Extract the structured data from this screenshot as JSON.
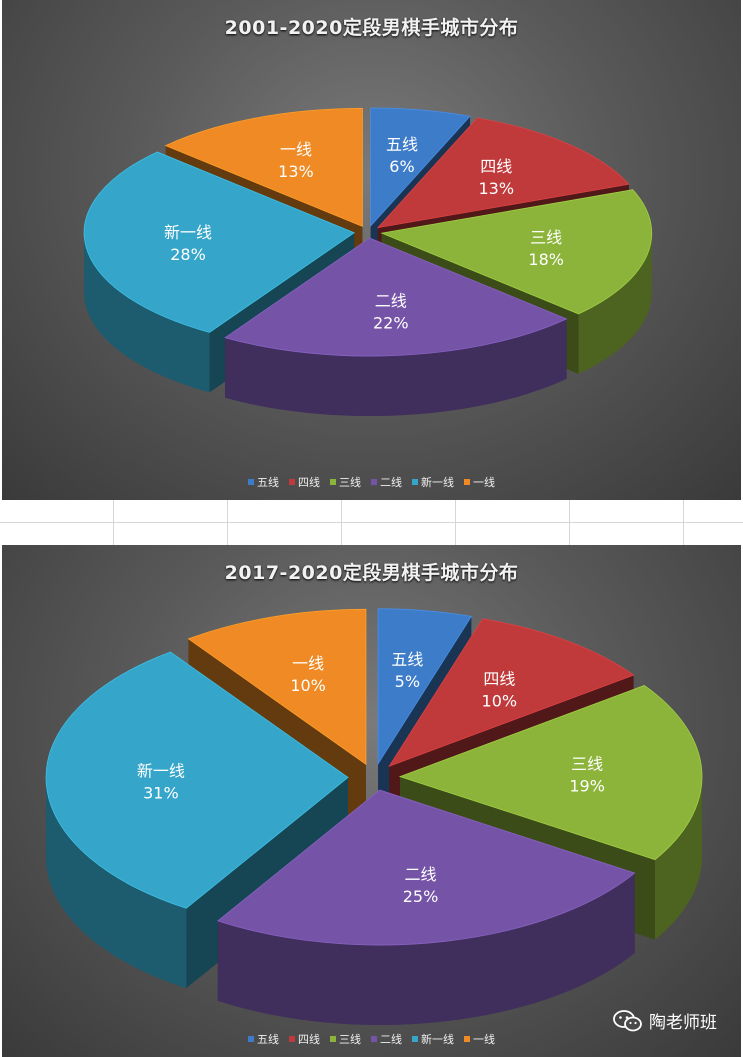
{
  "chart_data": [
    {
      "type": "pie",
      "title": "2001-2020定段男棋手城市分布",
      "categories": [
        "五线",
        "四线",
        "三线",
        "二线",
        "新一线",
        "一线"
      ],
      "values": [
        6,
        13,
        18,
        22,
        28,
        13
      ],
      "labels": [
        "6%",
        "13%",
        "18%",
        "22%",
        "28%",
        "13%"
      ],
      "colors": [
        "#3d7cc9",
        "#c0393b",
        "#8cb43a",
        "#7554a8",
        "#35a6c9",
        "#ef8a24"
      ],
      "legend_position": "bottom",
      "exploded": true,
      "style": "3d"
    },
    {
      "type": "pie",
      "title": "2017-2020定段男棋手城市分布",
      "categories": [
        "五线",
        "四线",
        "三线",
        "二线",
        "新一线",
        "一线"
      ],
      "values": [
        5,
        10,
        19,
        25,
        31,
        10
      ],
      "labels": [
        "5%",
        "10%",
        "19%",
        "25%",
        "31%",
        "10%"
      ],
      "colors": [
        "#3d7cc9",
        "#c0393b",
        "#8cb43a",
        "#7554a8",
        "#35a6c9",
        "#ef8a24"
      ],
      "legend_position": "bottom",
      "exploded": true,
      "style": "3d"
    }
  ],
  "watermark": {
    "icon": "wechat-icon",
    "text": "陶老师班"
  }
}
